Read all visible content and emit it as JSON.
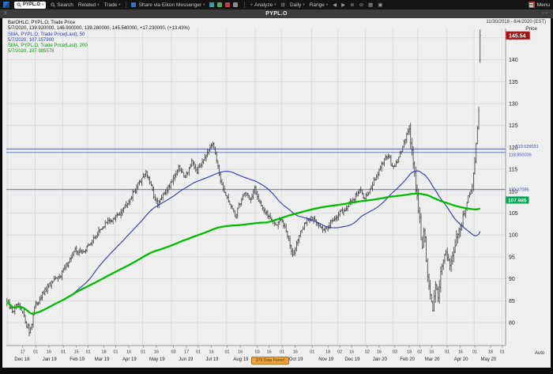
{
  "toolbar": {
    "search_value": "PYPL.O",
    "search_label": "Search",
    "related_label": "Related",
    "trade_label": "Trade",
    "share_label": "Share via Eikon Messenger",
    "analyze_label": "Analyze",
    "daily_label": "Daily",
    "range_label": "Range",
    "menu_label": "Menu"
  },
  "titlebar": {
    "symbol": "PYPL.O"
  },
  "legend": {
    "line1": "BarOHLC, PYPL.O, Trade Price",
    "line2": "5/7/2020, 139.920000, 146.900000, 139.280000, 145.540000, +17.230000, (+13.43%)",
    "line3": "SMA, PYPL.O, Trade Price(Last), 50",
    "line4": "5/7/2020, 107.157900",
    "line5": "SMA, PYPL.O, Trade Price(Last), 200",
    "line6": "5/7/2020, 107.985578"
  },
  "overlays": {
    "date_range": "11/30/2018 - 6/4/2020 (EST)",
    "price_label": "Price"
  },
  "footer": {
    "period_label": "379 Data Period"
  },
  "chart_data": {
    "type": "ohlc-bar",
    "title": "PYPL.O",
    "interval": "Daily",
    "ylabel": "Price",
    "x_range": [
      "11/30/2018",
      "6/4/2020"
    ],
    "ylim": [
      74.8,
      147.2
    ],
    "total_days": 381,
    "last_bar_day": 361,
    "prev_close": 128.31,
    "last": {
      "date": "5/7/2020",
      "open": 139.92,
      "high": 146.9,
      "low": 139.28,
      "close": 145.54,
      "net_change": 17.23,
      "pct_change": 13.43
    },
    "sma": [
      {
        "period": 50,
        "last_value": 107.1579
      },
      {
        "period": 200,
        "last_value": 107.985578
      }
    ],
    "price_anchors": [
      [
        0,
        84.5
      ],
      [
        4,
        82.5
      ],
      [
        8,
        84
      ],
      [
        12,
        82
      ],
      [
        16,
        79
      ],
      [
        17,
        77.8
      ],
      [
        19,
        80
      ],
      [
        21,
        83.5
      ],
      [
        26,
        86
      ],
      [
        32,
        88.5
      ],
      [
        38,
        90
      ],
      [
        42,
        91.5
      ],
      [
        47,
        94
      ],
      [
        52,
        96.5
      ],
      [
        57,
        96
      ],
      [
        62,
        97.5
      ],
      [
        66,
        99
      ],
      [
        72,
        101.5
      ],
      [
        77,
        103
      ],
      [
        82,
        103.8
      ],
      [
        87,
        105.5
      ],
      [
        93,
        108
      ],
      [
        98,
        110.5
      ],
      [
        101,
        112
      ],
      [
        103,
        113
      ],
      [
        106,
        114.5
      ],
      [
        110,
        111
      ],
      [
        113,
        108
      ],
      [
        115,
        106.8
      ],
      [
        118,
        108.5
      ],
      [
        121,
        110
      ],
      [
        125,
        112
      ],
      [
        131,
        115.2
      ],
      [
        136,
        113.5
      ],
      [
        141,
        116.5
      ],
      [
        145,
        114.5
      ],
      [
        151,
        118
      ],
      [
        156,
        120.9
      ],
      [
        159,
        119
      ],
      [
        161,
        116
      ],
      [
        163,
        112
      ],
      [
        165,
        110
      ],
      [
        167,
        109
      ],
      [
        171,
        106.5
      ],
      [
        174,
        104.3
      ],
      [
        178,
        107.5
      ],
      [
        182,
        110
      ],
      [
        186,
        108
      ],
      [
        189,
        110.2
      ],
      [
        193,
        107.5
      ],
      [
        197,
        105
      ],
      [
        201,
        104
      ],
      [
        205,
        102.3
      ],
      [
        209,
        103.5
      ],
      [
        213,
        101
      ],
      [
        216,
        97.5
      ],
      [
        218,
        95.8
      ],
      [
        221,
        98
      ],
      [
        223,
        99.8
      ],
      [
        227,
        102.5
      ],
      [
        232,
        104
      ],
      [
        237,
        103
      ],
      [
        241,
        101
      ],
      [
        246,
        102.5
      ],
      [
        252,
        104.5
      ],
      [
        257,
        105.5
      ],
      [
        262,
        107.5
      ],
      [
        267,
        109.5
      ],
      [
        270,
        110
      ],
      [
        273,
        108.5
      ],
      [
        278,
        111
      ],
      [
        283,
        114
      ],
      [
        288,
        117
      ],
      [
        291,
        118.5
      ],
      [
        293,
        116
      ],
      [
        296,
        115.5
      ],
      [
        299,
        117.5
      ],
      [
        302,
        120
      ],
      [
        305,
        123.5
      ],
      [
        307,
        124.2
      ],
      [
        309,
        119
      ],
      [
        311,
        113.5
      ],
      [
        313,
        108.5
      ],
      [
        315,
        104
      ],
      [
        316,
        100
      ],
      [
        317,
        97
      ],
      [
        318,
        101.5
      ],
      [
        319,
        99
      ],
      [
        320,
        94
      ],
      [
        321,
        91
      ],
      [
        322,
        88
      ],
      [
        323,
        85.5
      ],
      [
        324,
        84
      ],
      [
        325,
        82.8
      ],
      [
        326,
        86
      ],
      [
        327,
        89.5
      ],
      [
        328,
        87
      ],
      [
        329,
        86
      ],
      [
        330,
        89
      ],
      [
        331,
        92
      ],
      [
        333,
        94
      ],
      [
        335,
        95.5
      ],
      [
        337,
        93.5
      ],
      [
        339,
        94.5
      ],
      [
        341,
        97
      ],
      [
        343,
        99.5
      ],
      [
        345,
        101
      ],
      [
        347,
        103
      ],
      [
        349,
        105
      ],
      [
        351,
        107.5
      ],
      [
        353,
        109.5
      ],
      [
        355,
        111.5
      ],
      [
        356,
        114
      ],
      [
        357,
        117
      ],
      [
        358,
        120.5
      ],
      [
        359,
        124
      ],
      [
        360,
        128.31
      ],
      [
        361,
        145.54
      ]
    ],
    "y_axis": {
      "ticks": [
        80,
        85,
        90,
        95,
        100,
        105,
        110,
        115,
        120,
        125,
        130,
        135,
        140,
        145
      ],
      "annotations": [
        {
          "value": 119.629031,
          "label": "119.629031"
        },
        {
          "value": 118.850036,
          "label": "118.850036"
        },
        {
          "value": 110.37085,
          "label": "110.37085"
        }
      ],
      "badges": {
        "last": {
          "value": 145.54,
          "label": "145.54"
        },
        "sma200": {
          "value": 107.985,
          "label": "107.985"
        }
      },
      "auto_label": "Auto"
    },
    "x_axis": {
      "months": [
        {
          "label": "Dec 18",
          "start": 1
        },
        {
          "label": "Jan 19",
          "start": 22
        },
        {
          "label": "Feb 19",
          "start": 43
        },
        {
          "label": "Mar 19",
          "start": 62
        },
        {
          "label": "Apr 19",
          "start": 83
        },
        {
          "label": "May 19",
          "start": 104
        },
        {
          "label": "Jun 19",
          "start": 126
        },
        {
          "label": "Jul 19",
          "start": 146
        },
        {
          "label": "Aug 19",
          "start": 168
        },
        {
          "label": "Sep 19",
          "start": 190
        },
        {
          "label": "Oct 19",
          "start": 210
        },
        {
          "label": "Nov 19",
          "start": 233
        },
        {
          "label": "Dec 19",
          "start": 253
        },
        {
          "label": "Jan 20",
          "start": 274
        },
        {
          "label": "Feb 20",
          "start": 295
        },
        {
          "label": "Mar 20",
          "start": 314
        },
        {
          "label": "Apr 20",
          "start": 336
        },
        {
          "label": "May 20",
          "start": 357
        },
        {
          "label": "",
          "start": 378
        }
      ],
      "ticks": [
        {
          "m": 0,
          "d": 17,
          "label": "17"
        },
        {
          "m": 1,
          "d": 1,
          "label": "01"
        },
        {
          "m": 1,
          "d": 16,
          "label": "16"
        },
        {
          "m": 2,
          "d": 1,
          "label": "01"
        },
        {
          "m": 2,
          "d": 15,
          "label": "15"
        },
        {
          "m": 3,
          "d": 1,
          "label": "01"
        },
        {
          "m": 3,
          "d": 18,
          "label": "18"
        },
        {
          "m": 4,
          "d": 1,
          "label": "01"
        },
        {
          "m": 4,
          "d": 16,
          "label": "16"
        },
        {
          "m": 5,
          "d": 1,
          "label": "01"
        },
        {
          "m": 5,
          "d": 16,
          "label": "16"
        },
        {
          "m": 6,
          "d": 3,
          "label": "03"
        },
        {
          "m": 6,
          "d": 17,
          "label": "17"
        },
        {
          "m": 7,
          "d": 1,
          "label": "01"
        },
        {
          "m": 7,
          "d": 16,
          "label": "16"
        },
        {
          "m": 8,
          "d": 1,
          "label": "01"
        },
        {
          "m": 8,
          "d": 16,
          "label": "16"
        },
        {
          "m": 9,
          "d": 3,
          "label": "03"
        },
        {
          "m": 9,
          "d": 16,
          "label": "16"
        },
        {
          "m": 10,
          "d": 1,
          "label": "01"
        },
        {
          "m": 10,
          "d": 16,
          "label": "16"
        },
        {
          "m": 11,
          "d": 1,
          "label": "01"
        },
        {
          "m": 11,
          "d": 18,
          "label": "18"
        },
        {
          "m": 12,
          "d": 2,
          "label": "02"
        },
        {
          "m": 12,
          "d": 16,
          "label": "16"
        },
        {
          "m": 13,
          "d": 2,
          "label": "02"
        },
        {
          "m": 13,
          "d": 16,
          "label": "16"
        },
        {
          "m": 14,
          "d": 3,
          "label": "03"
        },
        {
          "m": 14,
          "d": 18,
          "label": "18"
        },
        {
          "m": 15,
          "d": 2,
          "label": "02"
        },
        {
          "m": 15,
          "d": 16,
          "label": "16"
        },
        {
          "m": 16,
          "d": 1,
          "label": "01"
        },
        {
          "m": 16,
          "d": 16,
          "label": "16"
        },
        {
          "m": 17,
          "d": 1,
          "label": "01"
        },
        {
          "m": 17,
          "d": 18,
          "label": "18"
        },
        {
          "m": 18,
          "d": 1,
          "label": "01"
        }
      ]
    },
    "style": {
      "bar": "#3b3b3b",
      "sma50": "#2c35b8",
      "sma200": "#00bd00",
      "hline": "#5a64b4",
      "hline_text": "#3a49b0",
      "grid": "#d9d9d9",
      "bg": "#efefef",
      "last_badge_bg": "#9e1515",
      "last_badge_border": "#d84040",
      "sma200_badge_bg": "#00a651"
    }
  }
}
